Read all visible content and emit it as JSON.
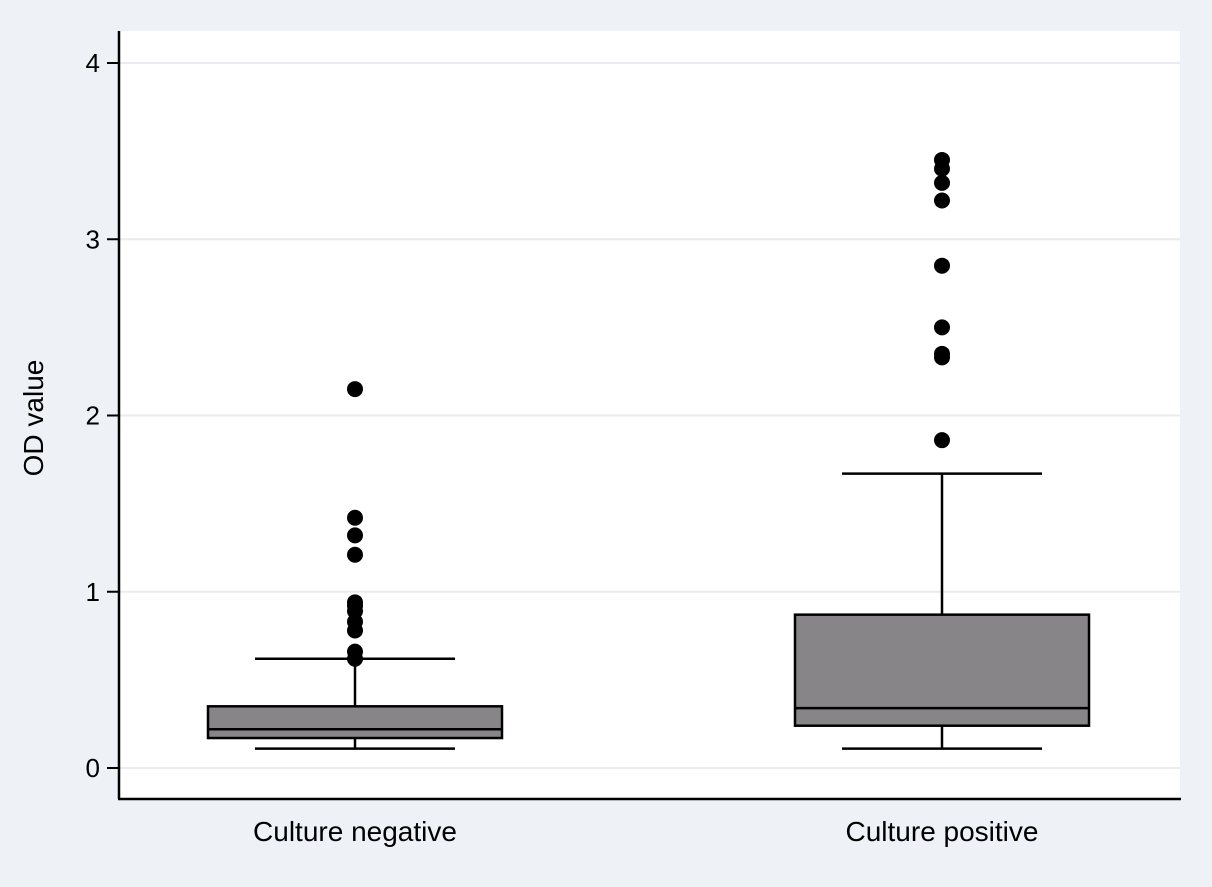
{
  "chart_data": {
    "type": "box",
    "ylabel": "OD value",
    "xlabel": "",
    "ylim": [
      -0.17,
      4.18
    ],
    "yticks": [
      0,
      1,
      2,
      3,
      4
    ],
    "grid": true,
    "colors": {
      "box_fill": "#878587",
      "plot_bg": "#ffffff",
      "outer_bg": "#eef1f6",
      "grid": "#e8ebf0",
      "stroke": "#000000"
    },
    "categories": [
      "Culture negative",
      "Culture positive"
    ],
    "boxes": [
      {
        "category": "Culture negative",
        "whisker_low": 0.11,
        "q1": 0.17,
        "median": 0.22,
        "q3": 0.35,
        "whisker_high": 0.62,
        "outliers": [
          0.62,
          0.66,
          0.78,
          0.83,
          0.89,
          0.92,
          0.94,
          1.21,
          1.32,
          1.42,
          2.15
        ]
      },
      {
        "category": "Culture positive",
        "whisker_low": 0.11,
        "q1": 0.24,
        "median": 0.34,
        "q3": 0.87,
        "whisker_high": 1.67,
        "outliers": [
          1.86,
          2.33,
          2.35,
          2.5,
          2.85,
          3.22,
          3.32,
          3.4,
          3.45
        ]
      }
    ]
  }
}
